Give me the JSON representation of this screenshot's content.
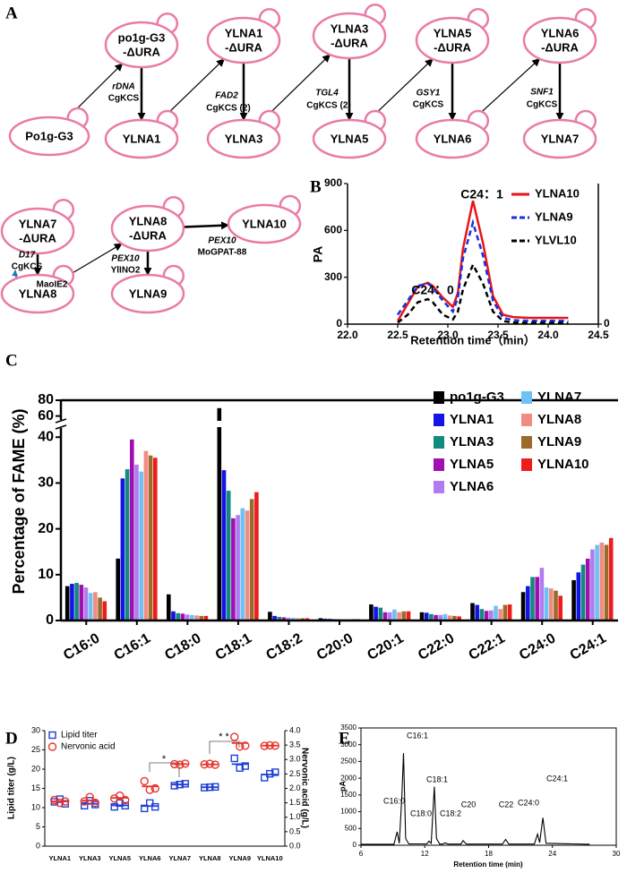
{
  "panels": [
    "A",
    "B",
    "C",
    "D",
    "E"
  ],
  "diagram": {
    "node_color": "#e97ba8",
    "nodes": [
      [
        "Po1g-G3"
      ],
      [
        "po1g-G3",
        "-ΔURA"
      ],
      [
        "YLNA1"
      ],
      [
        "YLNA1",
        "-ΔURA"
      ],
      [
        "YLNA3"
      ],
      [
        "YLNA3",
        "-ΔURA"
      ],
      [
        "YLNA5"
      ],
      [
        "YLNA5",
        "-ΔURA"
      ],
      [
        "YLNA6"
      ],
      [
        "YLNA6",
        "-ΔURA"
      ],
      [
        "YLNA7"
      ],
      [
        "YLNA7",
        "-ΔURA"
      ],
      [
        "YLNA8"
      ],
      [
        "YLNA8",
        "-ΔURA"
      ],
      [
        "YLNA10"
      ],
      [
        "YLNA9"
      ]
    ],
    "annotations": [
      [
        {
          "text": "rDNA",
          "color": "#22a84a",
          "italic": true
        },
        {
          "text": "CgKCS",
          "color": "#1f78b4"
        }
      ],
      [
        {
          "text": "FAD2",
          "color": "#22a84a",
          "italic": true
        },
        {
          "text": "CgKCS (2)",
          "color": "#1f78b4"
        }
      ],
      [
        {
          "text": "TGL4",
          "color": "#22a84a",
          "italic": true
        },
        {
          "text": "CgKCS (2)",
          "color": "#1f78b4"
        }
      ],
      [
        {
          "text": "GSY1",
          "color": "#22a84a",
          "italic": true
        },
        {
          "text": "CgKCS",
          "color": "#1f78b4"
        }
      ],
      [
        {
          "text": "SNF1",
          "color": "#22a84a",
          "italic": true
        },
        {
          "text": "CgKCS",
          "color": "#1f78b4"
        }
      ],
      [
        {
          "text": "D17",
          "color": "#22a84a",
          "italic": true
        },
        {
          "text": "CgKCS",
          "color": "#1f78b4"
        },
        {
          "text": "MaoIE2",
          "color": "#1f78b4"
        }
      ],
      [
        {
          "text": "PEX10",
          "color": "#22a84a",
          "italic": true
        },
        {
          "text": "YlINO2",
          "color": "#1f78b4"
        }
      ],
      [
        {
          "text": "PEX10",
          "color": "#22a84a",
          "italic": true
        },
        {
          "text": "MoGPAT-88",
          "color": "#1f78b4"
        }
      ]
    ]
  },
  "chart_data": [
    {
      "type": "line",
      "ylabel": "PA",
      "xlabel": "Retention time（min）",
      "annotations": [
        "C24：0",
        "C24：1"
      ],
      "x": [
        22.5,
        22.6,
        22.7,
        22.8,
        22.85,
        22.95,
        23.05,
        23.1,
        23.15,
        23.25,
        23.35,
        23.45,
        23.55,
        23.65,
        23.8,
        24.0,
        24.2
      ],
      "series": [
        {
          "name": "YLNA10",
          "color": "#e8161b",
          "dashed": false,
          "values": [
            20,
            130,
            240,
            265,
            245,
            170,
            110,
            200,
            480,
            790,
            520,
            180,
            60,
            45,
            40,
            40,
            40
          ]
        },
        {
          "name": "YLNA9",
          "color": "#1530e0",
          "dashed": true,
          "values": [
            60,
            150,
            245,
            260,
            235,
            150,
            80,
            170,
            420,
            650,
            440,
            150,
            40,
            25,
            22,
            22,
            22
          ]
        },
        {
          "name": "YLVL10",
          "color": "#000000",
          "dashed": true,
          "values": [
            10,
            60,
            140,
            160,
            140,
            60,
            30,
            80,
            220,
            380,
            260,
            80,
            20,
            10,
            8,
            8,
            8
          ]
        }
      ],
      "xlim": [
        22,
        24.5
      ],
      "xticks": [
        {
          "value": 22,
          "label": "22.0"
        },
        22.5,
        {
          "value": 23,
          "label": "23.0"
        },
        23.5,
        {
          "value": 24,
          "label": "24.0"
        },
        24.5
      ],
      "ylim": [
        0,
        900
      ],
      "yticks": [
        0,
        300,
        600,
        900
      ],
      "y2lim": [
        0,
        900
      ],
      "y2ticks": [
        0
      ],
      "legend": "upper right"
    },
    {
      "type": "bar",
      "ylabel": "Percentage of FAME (%)",
      "categories": [
        "C16:0",
        "C16:1",
        "C18:0",
        "C18:1",
        "C18:2",
        "C20:0",
        "C20:1",
        "C22:0",
        "C22:1",
        "C24:0",
        "C24:1"
      ],
      "series": [
        {
          "name": "po1g-G3",
          "color": "#000000",
          "values": [
            7.5,
            13.5,
            5.7,
            70,
            1.9,
            0.5,
            3.5,
            1.8,
            3.8,
            6.2,
            8.8
          ]
        },
        {
          "name": "YLNA1",
          "color": "#1414e6",
          "values": [
            8,
            31,
            2,
            32.8,
            1,
            0.4,
            3,
            1.7,
            3.4,
            7.5,
            10.5
          ]
        },
        {
          "name": "YLNA3",
          "color": "#138a80",
          "values": [
            8.2,
            33,
            1.6,
            28.3,
            0.8,
            0.4,
            2.8,
            1.4,
            2.5,
            9.5,
            12.2
          ]
        },
        {
          "name": "YLNA5",
          "color": "#a010b0",
          "values": [
            7.8,
            39.5,
            1.5,
            22.3,
            0.7,
            0.3,
            1.8,
            1.2,
            2.1,
            9.5,
            13.5
          ]
        },
        {
          "name": "YLNA6",
          "color": "#b07cf0",
          "values": [
            7.2,
            34,
            1.3,
            23,
            0.6,
            0.3,
            1.8,
            1.2,
            2.2,
            11.5,
            15.5
          ]
        },
        {
          "name": "YLNA7",
          "color": "#6ec1f5",
          "values": [
            6,
            32.5,
            1.2,
            24.5,
            0.6,
            0.3,
            2.4,
            1.4,
            3.2,
            7.2,
            16.5
          ]
        },
        {
          "name": "YLNA8",
          "color": "#f08c84",
          "values": [
            6.2,
            37,
            1.1,
            24,
            0.5,
            0.3,
            1.8,
            1.1,
            2.5,
            7,
            17
          ]
        },
        {
          "name": "YLNA9",
          "color": "#9c6a2a",
          "values": [
            5,
            36,
            1,
            26.5,
            0.5,
            0.3,
            2,
            1,
            3.4,
            6.5,
            16.5
          ]
        },
        {
          "name": "YLNA10",
          "color": "#ee1c1c",
          "values": [
            4.2,
            35.5,
            1,
            28,
            0.5,
            0.3,
            2,
            0.9,
            3.5,
            5.4,
            18
          ]
        }
      ],
      "ylim": [
        0,
        80
      ],
      "ybreak": [
        42,
        55
      ],
      "yticks": [
        0,
        10,
        20,
        30,
        40,
        60,
        80
      ],
      "legend": "upper right"
    },
    {
      "type": "scatter",
      "ylabel": "Lipid titer (g/L)",
      "y2label": "Nervonic acid (g/L)",
      "annotations": [
        "*",
        "* *"
      ],
      "categories": [
        "YLNA1",
        "YLNA3",
        "YLNA5",
        "YLNA6",
        "YLNA7",
        "YLNA8",
        "YLNA9",
        "YLNA10"
      ],
      "series": [
        {
          "name": "Lipid titer",
          "color": "#1f3fd6",
          "marker": "square",
          "values": [
            [
              11.5,
              12.2,
              11.0
            ],
            [
              10.5,
              11.8,
              10.8
            ],
            [
              10.2,
              11.2,
              10.5
            ],
            [
              9.8,
              11.2,
              10.2
            ],
            [
              15.7,
              16.0,
              16.2
            ],
            [
              15.2,
              15.3,
              15.4
            ],
            [
              22.8,
              20.3,
              20.8
            ],
            [
              17.8,
              18.8,
              19.2
            ]
          ],
          "means": [
            11.6,
            11.0,
            10.6,
            10.4,
            16.0,
            15.3,
            21.3,
            18.6
          ]
        },
        {
          "name": "Nervonic acid",
          "color": "#e8332a",
          "marker": "circle",
          "axis": "y2",
          "values": [
            [
              1.6,
              1.5,
              1.55
            ],
            [
              1.55,
              1.7,
              1.5
            ],
            [
              1.65,
              1.75,
              1.6
            ],
            [
              2.25,
              1.95,
              2.0
            ],
            [
              2.84,
              2.82,
              2.86
            ],
            [
              2.83,
              2.85,
              2.82
            ],
            [
              3.78,
              3.45,
              3.48
            ],
            [
              3.47,
              3.49,
              3.48
            ]
          ],
          "means": [
            1.55,
            1.58,
            1.67,
            2.07,
            2.84,
            2.83,
            3.57,
            3.48
          ]
        }
      ],
      "ylim": [
        0,
        30
      ],
      "yticks": [
        0,
        5,
        10,
        15,
        20,
        25,
        30
      ],
      "y2lim": [
        0,
        4
      ],
      "y2ticks": [
        {
          "value": 0,
          "label": "0.0"
        },
        0.5,
        {
          "value": 1,
          "label": "1.0"
        },
        1.5,
        {
          "value": 2,
          "label": "2.0"
        },
        2.5,
        {
          "value": 3,
          "label": "3.0"
        },
        3.5,
        {
          "value": 4,
          "label": "4.0"
        }
      ],
      "legend": "upper left"
    },
    {
      "type": "line",
      "xlabel": "Retention time (min)",
      "ylabel": "pA",
      "annotations": [
        "C16:0",
        "C16:1",
        "C18:0",
        "C18:1",
        "C18:2",
        "C20",
        "C22",
        "C24:0",
        "C24:1"
      ],
      "x": [
        6,
        9.1,
        9.4,
        9.6,
        9.85,
        10,
        10.2,
        10.5,
        12.2,
        12.4,
        12.6,
        12.9,
        13.1,
        13.4,
        13.7,
        13.9,
        14.2,
        15.4,
        15.6,
        15.9,
        19.3,
        19.6,
        19.9,
        22.3,
        22.6,
        22.8,
        23.1,
        23.4,
        27.5
      ],
      "series": [
        {
          "color": "#000000",
          "values": [
            30,
            30,
            400,
            60,
            1500,
            2750,
            200,
            40,
            40,
            120,
            60,
            1750,
            200,
            35,
            35,
            70,
            35,
            35,
            140,
            35,
            35,
            170,
            35,
            35,
            330,
            80,
            820,
            60,
            30
          ]
        }
      ],
      "xlim": [
        6,
        30
      ],
      "xticks": [
        6,
        12,
        18,
        24,
        30
      ],
      "ylim": [
        0,
        3500
      ],
      "yticks": [
        0,
        500,
        1000,
        1500,
        2000,
        2500,
        3000,
        3500
      ]
    }
  ]
}
